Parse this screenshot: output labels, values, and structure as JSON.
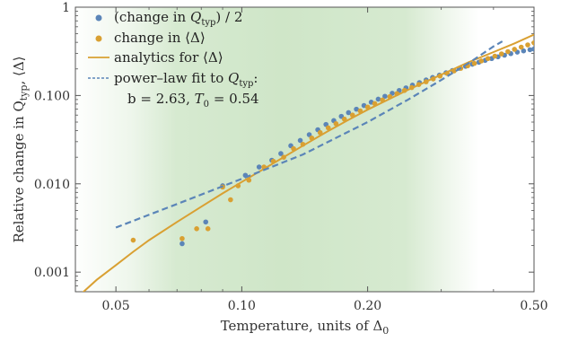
{
  "chart_data": {
    "type": "scatter",
    "xlabel": "Temperature, units of Δ",
    "xlabel_sub": "0",
    "ylabel": "Relative change in Q",
    "ylabel_sub": "typ",
    "ylabel_tail": ", ⟨Δ⟩",
    "xscale": "log",
    "yscale": "log",
    "xlim": [
      0.04,
      0.5
    ],
    "ylim": [
      0.0006,
      1.0
    ],
    "x_ticks": [
      {
        "v": 0.05,
        "label": "0.05"
      },
      {
        "v": 0.1,
        "label": "0.10"
      },
      {
        "v": 0.2,
        "label": "0.20"
      },
      {
        "v": 0.5,
        "label": "0.50"
      }
    ],
    "y_ticks": [
      {
        "v": 0.001,
        "label": "0.001"
      },
      {
        "v": 0.01,
        "label": "0.010"
      },
      {
        "v": 0.1,
        "label": "0.100"
      },
      {
        "v": 1,
        "label": "1"
      }
    ],
    "background": "green shaded band between T ≈ 0.06 and T ≈ 0.40, fading at both edges",
    "legend_position": "top-left",
    "legend": [
      {
        "kind": "marker",
        "color": "#5b85b8",
        "pre": "(change in ",
        "it": "Q",
        "sub": "typ",
        "post": ") / 2"
      },
      {
        "kind": "marker",
        "color": "#d9a032",
        "pre": "change in ⟨Δ⟩",
        "it": "",
        "sub": "",
        "post": ""
      },
      {
        "kind": "line",
        "color": "#d9a032",
        "pre": "analytics for ⟨Δ⟩",
        "it": "",
        "sub": "",
        "post": ""
      },
      {
        "kind": "dashed",
        "color": "#5b85b8",
        "pre": "power–law fit to ",
        "it": "Q",
        "sub": "typ",
        "post": ":"
      },
      {
        "kind": "text",
        "color": "",
        "pre": "b = 2.63, ",
        "it": "T",
        "sub": "0",
        "post": " = 0.54"
      }
    ],
    "colors": {
      "q_typ": "#5b85b8",
      "delta": "#d9a032",
      "green": "#cfe6c8"
    },
    "series": [
      {
        "name": "(change in Qtyp) / 2",
        "kind": "points",
        "color": "#5b85b8",
        "points": [
          [
            0.072,
            0.0021
          ],
          [
            0.082,
            0.0037
          ],
          [
            0.09,
            0.0095
          ],
          [
            0.102,
            0.0125
          ],
          [
            0.11,
            0.0155
          ],
          [
            0.118,
            0.0185
          ],
          [
            0.124,
            0.022
          ],
          [
            0.131,
            0.027
          ],
          [
            0.138,
            0.031
          ],
          [
            0.145,
            0.036
          ],
          [
            0.152,
            0.041
          ],
          [
            0.159,
            0.047
          ],
          [
            0.166,
            0.052
          ],
          [
            0.173,
            0.058
          ],
          [
            0.18,
            0.064
          ],
          [
            0.188,
            0.07
          ],
          [
            0.196,
            0.077
          ],
          [
            0.204,
            0.084
          ],
          [
            0.212,
            0.091
          ],
          [
            0.22,
            0.098
          ],
          [
            0.229,
            0.106
          ],
          [
            0.238,
            0.114
          ],
          [
            0.247,
            0.122
          ],
          [
            0.256,
            0.131
          ],
          [
            0.266,
            0.14
          ],
          [
            0.276,
            0.15
          ],
          [
            0.286,
            0.16
          ],
          [
            0.297,
            0.17
          ],
          [
            0.308,
            0.181
          ],
          [
            0.319,
            0.192
          ],
          [
            0.331,
            0.203
          ],
          [
            0.343,
            0.214
          ],
          [
            0.356,
            0.226
          ],
          [
            0.369,
            0.238
          ],
          [
            0.382,
            0.25
          ],
          [
            0.396,
            0.262
          ],
          [
            0.41,
            0.274
          ],
          [
            0.425,
            0.286
          ],
          [
            0.44,
            0.298
          ],
          [
            0.456,
            0.31
          ],
          [
            0.472,
            0.32
          ],
          [
            0.489,
            0.33
          ],
          [
            0.5,
            0.336
          ]
        ]
      },
      {
        "name": "change in ⟨Δ⟩",
        "kind": "points",
        "color": "#d9a032",
        "points": [
          [
            0.055,
            0.0023
          ],
          [
            0.072,
            0.0024
          ],
          [
            0.078,
            0.0031
          ],
          [
            0.083,
            0.0031
          ],
          [
            0.09,
            0.0092
          ],
          [
            0.094,
            0.0066
          ],
          [
            0.098,
            0.0095
          ],
          [
            0.104,
            0.011
          ],
          [
            0.113,
            0.0155
          ],
          [
            0.119,
            0.018
          ],
          [
            0.126,
            0.02
          ],
          [
            0.133,
            0.025
          ],
          [
            0.14,
            0.028
          ],
          [
            0.147,
            0.033
          ],
          [
            0.154,
            0.038
          ],
          [
            0.161,
            0.043
          ],
          [
            0.168,
            0.048
          ],
          [
            0.176,
            0.054
          ],
          [
            0.184,
            0.06
          ],
          [
            0.192,
            0.067
          ],
          [
            0.2,
            0.074
          ],
          [
            0.208,
            0.081
          ],
          [
            0.217,
            0.089
          ],
          [
            0.226,
            0.097
          ],
          [
            0.235,
            0.105
          ],
          [
            0.245,
            0.114
          ],
          [
            0.255,
            0.123
          ],
          [
            0.265,
            0.133
          ],
          [
            0.276,
            0.143
          ],
          [
            0.287,
            0.154
          ],
          [
            0.298,
            0.166
          ],
          [
            0.31,
            0.178
          ],
          [
            0.322,
            0.19
          ],
          [
            0.334,
            0.203
          ],
          [
            0.347,
            0.217
          ],
          [
            0.36,
            0.231
          ],
          [
            0.374,
            0.246
          ],
          [
            0.388,
            0.262
          ],
          [
            0.403,
            0.279
          ],
          [
            0.418,
            0.296
          ],
          [
            0.433,
            0.314
          ],
          [
            0.449,
            0.333
          ],
          [
            0.466,
            0.353
          ],
          [
            0.483,
            0.374
          ],
          [
            0.5,
            0.395
          ]
        ]
      },
      {
        "name": "analytics for ⟨Δ⟩",
        "kind": "line",
        "color": "#d9a032",
        "points": [
          [
            0.041,
            0.00055
          ],
          [
            0.045,
            0.00082
          ],
          [
            0.05,
            0.0012
          ],
          [
            0.055,
            0.0017
          ],
          [
            0.06,
            0.0023
          ],
          [
            0.07,
            0.0037
          ],
          [
            0.08,
            0.0055
          ],
          [
            0.09,
            0.0078
          ],
          [
            0.1,
            0.0105
          ],
          [
            0.12,
            0.0175
          ],
          [
            0.14,
            0.027
          ],
          [
            0.16,
            0.039
          ],
          [
            0.18,
            0.053
          ],
          [
            0.2,
            0.069
          ],
          [
            0.25,
            0.116
          ],
          [
            0.3,
            0.172
          ],
          [
            0.35,
            0.24
          ],
          [
            0.4,
            0.31
          ],
          [
            0.45,
            0.39
          ],
          [
            0.5,
            0.49
          ]
        ]
      },
      {
        "name": "power–law fit to Qtyp",
        "kind": "dashed",
        "color": "#5b85b8",
        "points": [
          [
            0.05,
            0.0032
          ],
          [
            0.07,
            0.0059
          ],
          [
            0.1,
            0.0114
          ],
          [
            0.14,
            0.0215
          ],
          [
            0.2,
            0.05
          ],
          [
            0.25,
            0.09
          ],
          [
            0.3,
            0.15
          ],
          [
            0.35,
            0.235
          ],
          [
            0.4,
            0.36
          ],
          [
            0.42,
            0.41
          ]
        ]
      }
    ]
  }
}
